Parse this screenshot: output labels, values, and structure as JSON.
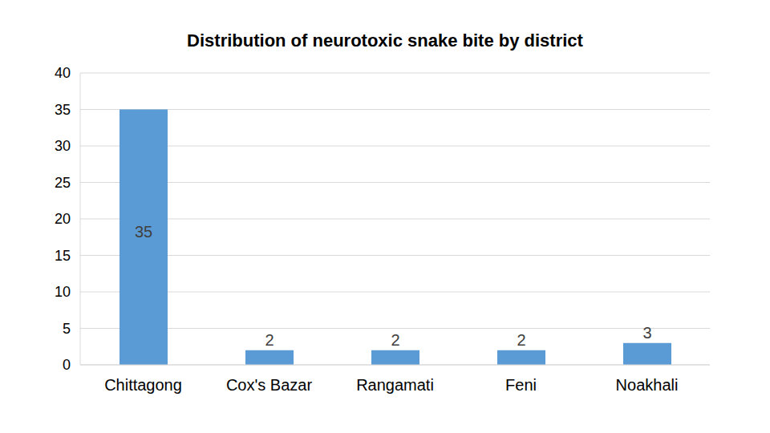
{
  "chart_data": {
    "type": "bar",
    "title": "Distribution of neurotoxic snake bite by district",
    "categories": [
      "Chittagong",
      "Cox's Bazar",
      "Rangamati",
      "Feni",
      "Noakhali"
    ],
    "values": [
      35,
      2,
      2,
      2,
      3
    ],
    "color": "#5b9bd5",
    "ylim": [
      0,
      40
    ],
    "yticks": [
      0,
      5,
      10,
      15,
      20,
      25,
      30,
      35,
      40
    ],
    "grid": true,
    "data_labels": true
  }
}
